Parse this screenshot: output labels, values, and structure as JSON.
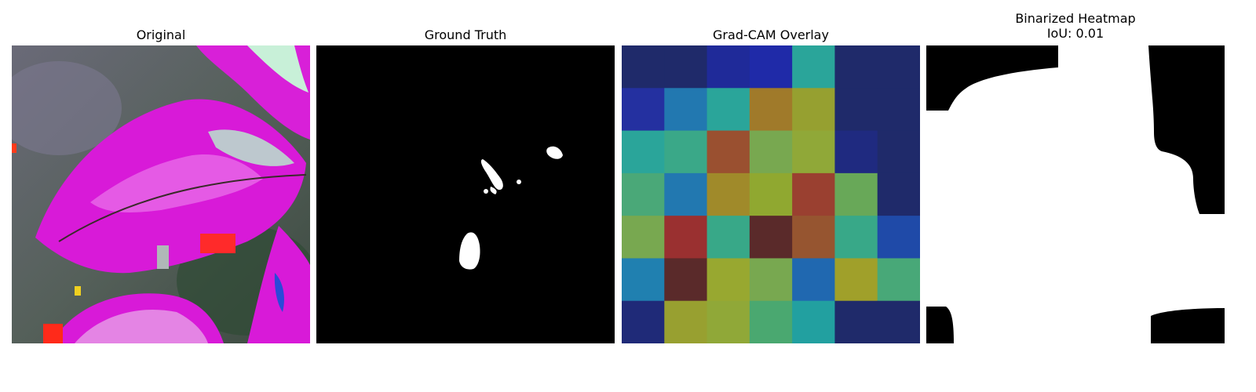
{
  "panels": [
    {
      "title": "Original"
    },
    {
      "title": "Ground Truth"
    },
    {
      "title": "Grad-CAM Overlay"
    },
    {
      "title": "Binarized Heatmap",
      "subtitle": "IoU: 0.01"
    }
  ],
  "gradcam": {
    "rows": 7,
    "cols": 7,
    "cells": [
      [
        "#1f2a6a",
        "#1f2a6a",
        "#1f2a99",
        "#1f2aa8",
        "#2aa59a",
        "#1f2a6a",
        "#1f2a6a"
      ],
      [
        "#2430a0",
        "#2278b0",
        "#2aa59a",
        "#a07a2a",
        "#96a030",
        "#1f2a6a",
        "#1f2a6a"
      ],
      [
        "#2aa59a",
        "#3aa888",
        "#9a5030",
        "#78a850",
        "#90a838",
        "#1f2a80",
        "#1f2a6a"
      ],
      [
        "#4aa878",
        "#2278b0",
        "#a08a2a",
        "#90a830",
        "#9a4030",
        "#68a858",
        "#1f2a6a"
      ],
      [
        "#78a850",
        "#9a3030",
        "#38a888",
        "#5a2a2a",
        "#965530",
        "#38a888",
        "#1f4aa8"
      ],
      [
        "#2080b0",
        "#5a2a2a",
        "#98a830",
        "#78a850",
        "#2068b0",
        "#a0a02a",
        "#48a878"
      ],
      [
        "#1f2a78",
        "#98a030",
        "#90a838",
        "#4aa870",
        "#22a0a0",
        "#1f2a6a",
        "#1f2a6a"
      ]
    ]
  }
}
